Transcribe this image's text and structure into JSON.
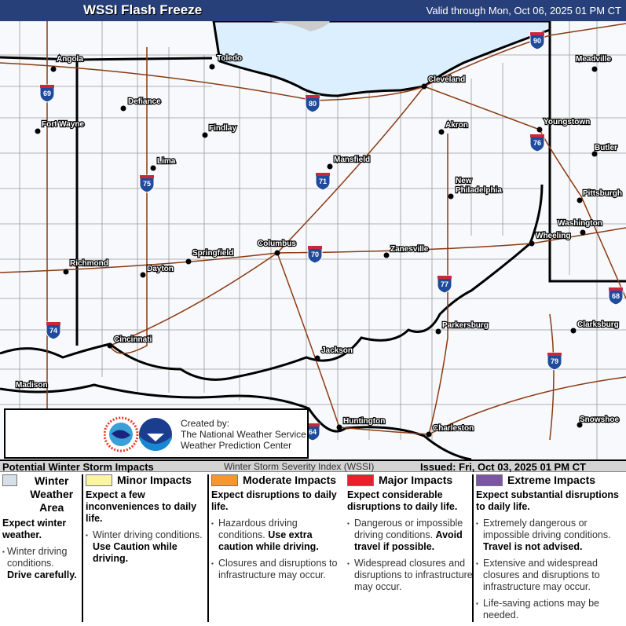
{
  "header": {
    "title": "WSSI Flash Freeze",
    "valid": "Valid through Mon, Oct 06, 2025 01 PM CT"
  },
  "map": {
    "cities": [
      "Angola",
      "Toledo",
      "Defiance",
      "Fort Wayne",
      "Findlay",
      "Lima",
      "Cleveland",
      "Akron",
      "Youngstown",
      "Meadville",
      "Butler",
      "Mansfield",
      "New",
      "Philadelphia",
      "Pittsburgh",
      "Washington",
      "Wheeling",
      "Columbus",
      "Springfield",
      "Zanesville",
      "Richmond",
      "Dayton",
      "Cincinnati",
      "Jackson",
      "Parkersburg",
      "Clarksburg",
      "Madison",
      "Huntington",
      "Charleston",
      "Snowshoe"
    ],
    "interstates": [
      "69",
      "90",
      "80",
      "75",
      "71",
      "76",
      "70",
      "77",
      "68",
      "74",
      "79",
      "64"
    ],
    "colors": {
      "lake": "#dcefff",
      "land": "#f8f9fc",
      "roads": "#8b3a12",
      "shield_blue": "#1f4b9c",
      "shield_red": "#c8283a"
    }
  },
  "credit": {
    "line1": "Created by:",
    "line2": "The National Weather Service",
    "line3": "Weather Prediction Center",
    "logos": [
      "NWS logo",
      "NOAA logo"
    ]
  },
  "legend": {
    "title": "Potential Winter Storm Impacts",
    "index": "Winter Storm Severity Index (WSSI)",
    "issued": "Issued: Fri, Oct 03, 2025 01 PM CT",
    "categories": [
      {
        "name": "Winter Weather Area",
        "color": "#d6e0e8",
        "expect": "Expect winter weather.",
        "items": [
          {
            "t": "Winter driving conditions. ",
            "b": "Drive carefully."
          }
        ]
      },
      {
        "name": "Minor Impacts",
        "color": "#fbf5a0",
        "expect": "Expect a few inconveniences to daily life.",
        "items": [
          {
            "t": "Winter driving conditions. ",
            "b": "Use Caution while driving."
          }
        ]
      },
      {
        "name": "Moderate Impacts",
        "color": "#f7962e",
        "expect": "Expect disruptions to daily life.",
        "items": [
          {
            "t": "Hazardous driving conditions. ",
            "b": "Use extra caution while driving."
          },
          {
            "t": "Closures and disruptions to infrastructure may occur.",
            "b": ""
          }
        ]
      },
      {
        "name": "Major Impacts",
        "color": "#e8202a",
        "expect": "Expect considerable disruptions to daily life.",
        "items": [
          {
            "t": "Dangerous or impossible driving conditions. ",
            "b": "Avoid travel if possible."
          },
          {
            "t": "Widespread closures and disruptions to infrastructure may occur.",
            "b": ""
          }
        ]
      },
      {
        "name": "Extreme Impacts",
        "color": "#7b55a3",
        "expect": "Expect substantial disruptions to daily life.",
        "items": [
          {
            "t": "Extremely dangerous or impossible driving conditions. ",
            "b": "Travel is not advised."
          },
          {
            "t": "Extensive and widespread closures and disruptions to infrastructure may occur.",
            "b": ""
          },
          {
            "t": "Life-saving actions may be needed.",
            "b": ""
          }
        ]
      }
    ]
  }
}
